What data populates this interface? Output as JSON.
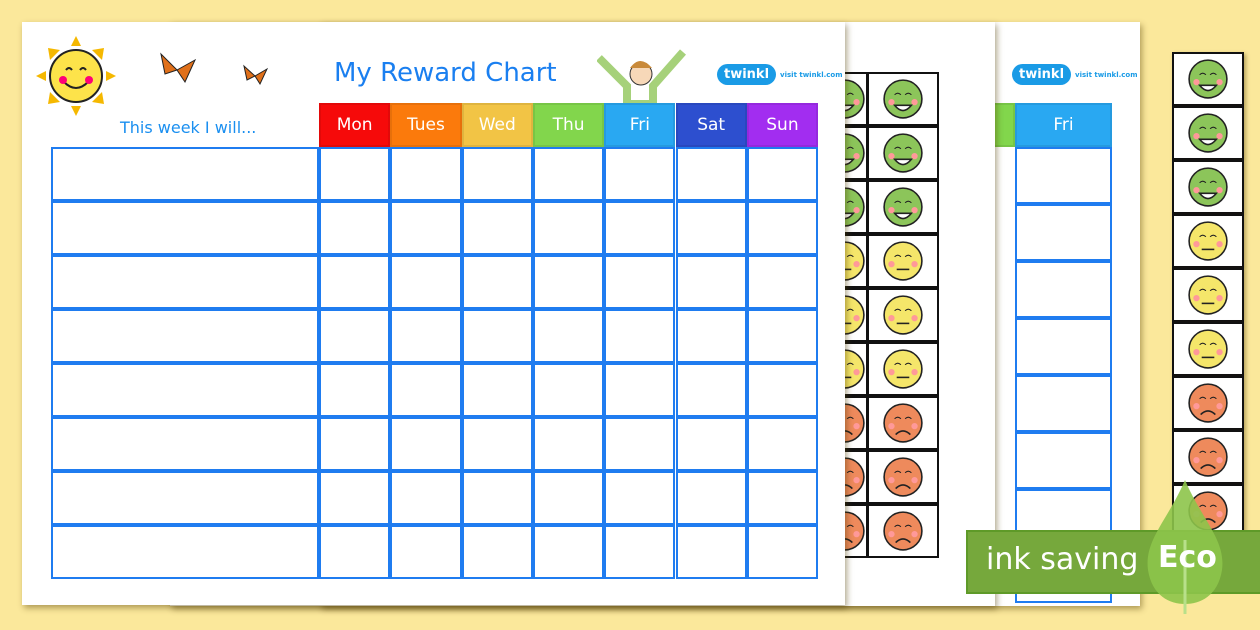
{
  "title": "My Reward Chart",
  "row_header": "This week I will...",
  "days": [
    {
      "label": "Mon",
      "color": "#f60a0a"
    },
    {
      "label": "Tues",
      "color": "#fb7a0c"
    },
    {
      "label": "Wed",
      "color": "#f2c445"
    },
    {
      "label": "Thu",
      "color": "#82d64c"
    },
    {
      "label": "Fri",
      "color": "#29a8f2"
    },
    {
      "label": "Sat",
      "color": "#2d4fcf"
    },
    {
      "label": "Sun",
      "color": "#a22df0"
    }
  ],
  "logo": {
    "brand": "twinkl",
    "url_text": "visit twinkl.com"
  },
  "back_sheet": {
    "day": "Fri"
  },
  "faces": [
    "happy",
    "happy",
    "happy",
    "neutral",
    "neutral",
    "neutral",
    "sad",
    "sad",
    "sad"
  ],
  "face_colors": {
    "happy": "#8cc55a",
    "neutral": "#f5e66a",
    "sad": "#ee8a5c"
  },
  "banner": {
    "text": "ink saving",
    "badge": "Eco",
    "color": "#76a83c"
  }
}
